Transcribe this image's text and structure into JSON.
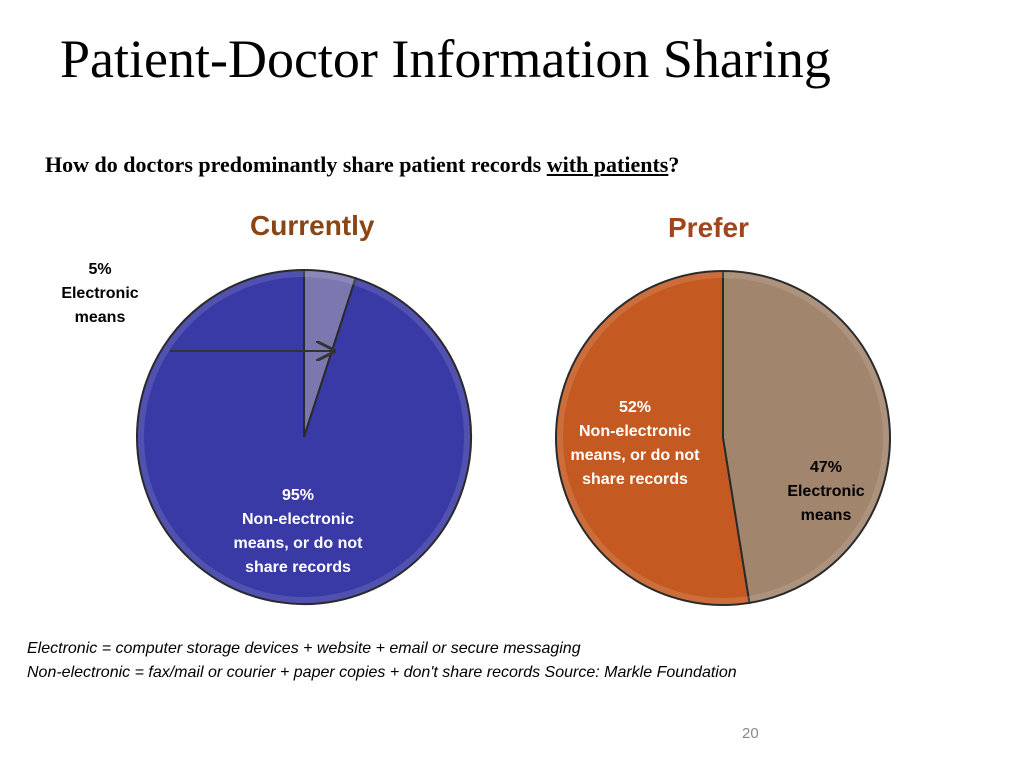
{
  "slide": {
    "title": "Patient-Doctor Information Sharing",
    "question_prefix": "How do doctors predominantly share patient records ",
    "question_underlined": "with patients",
    "question_suffix": "?",
    "footnote_line1": "Electronic = computer storage devices + website + email or secure messaging",
    "footnote_line2": "Non-electronic = fax/mail or courier + paper copies + don't share records   Source:  Markle Foundation",
    "page_number": "20"
  },
  "chart_data": [
    {
      "type": "pie",
      "title": "Currently",
      "title_color": "#8B4513",
      "slices": [
        {
          "label": "Electronic means",
          "pct_label": "5%",
          "value": 5,
          "color": "#7B78B0"
        },
        {
          "label": "Non-electronic means, or do not share records",
          "pct_label": "95%",
          "value": 95,
          "color": "#3A3AA6"
        }
      ]
    },
    {
      "type": "pie",
      "title": "Prefer",
      "title_color": "#A0461E",
      "slices": [
        {
          "label": "Electronic means",
          "pct_label": "47%",
          "value": 47,
          "color": "#A2856D"
        },
        {
          "label": "Non-electronic means, or do not share records",
          "pct_label": "52%",
          "value": 52,
          "color": "#C45A22"
        }
      ]
    }
  ]
}
